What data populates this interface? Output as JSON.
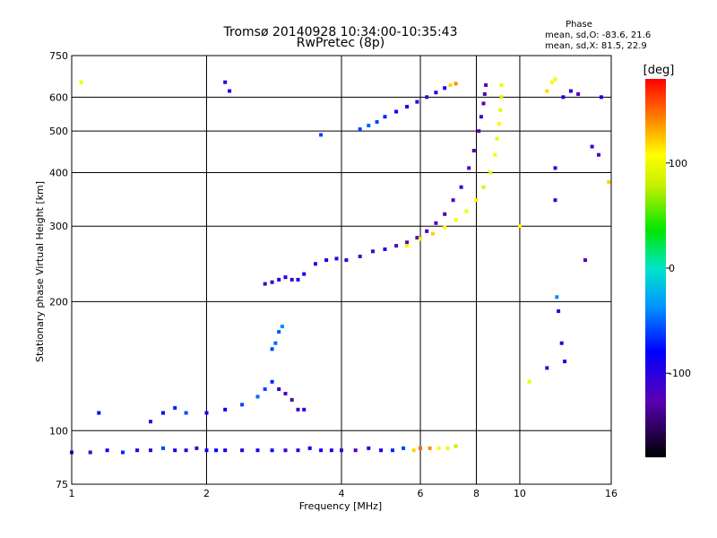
{
  "chart_data": {
    "type": "scatter",
    "title": "Tromsø 20140928 10:34:00-10:35:43",
    "subtitle": "RwPretec (8p)",
    "phase_stats": {
      "heading": "Phase",
      "line1": "mean, sd,O: -83.6, 21.6",
      "line2": "mean, sd,X:  81.5, 22.9"
    },
    "xlabel": "Frequency [MHz]",
    "ylabel": "Stationary phase Virtual Height [km]",
    "x_scale": "log",
    "y_scale": "log",
    "xlim": [
      1,
      16
    ],
    "ylim": [
      75,
      750
    ],
    "x_ticks": [
      1,
      2,
      4,
      6,
      8,
      10,
      16
    ],
    "x_tick_labels": [
      "1",
      "2",
      "4",
      "6",
      "8",
      "10",
      "16"
    ],
    "y_ticks": [
      75,
      100,
      200,
      300,
      400,
      500,
      600,
      750
    ],
    "y_tick_labels": [
      "75",
      "100",
      "200",
      "300",
      "400",
      "500",
      "600",
      "750"
    ],
    "grid": true,
    "colorbar": {
      "label": "[deg]",
      "range": [
        -180,
        180
      ],
      "ticks": [
        100,
        0,
        -100
      ],
      "tick_labels": [
        "100",
        "0",
        "-100"
      ]
    },
    "series": [
      {
        "x": [
          1.0,
          1.1,
          1.2,
          1.3,
          1.4,
          1.5,
          1.6,
          1.7,
          1.8,
          1.9,
          2.0,
          2.1,
          2.2,
          2.4,
          2.6,
          2.8,
          3.0,
          3.2,
          3.4,
          3.6,
          3.8,
          4.0,
          4.3,
          4.6,
          4.9,
          5.2,
          5.5,
          5.8,
          6.0,
          6.3,
          6.6,
          6.9,
          7.2
        ],
        "y": [
          89,
          89,
          90,
          89,
          90,
          90,
          91,
          90,
          90,
          91,
          90,
          90,
          90,
          90,
          90,
          90,
          90,
          90,
          91,
          90,
          90,
          90,
          90,
          91,
          90,
          90,
          91,
          90,
          91,
          91,
          91,
          91,
          92
        ],
        "phase": [
          -100,
          -110,
          -90,
          -70,
          -100,
          -110,
          -60,
          -90,
          -100,
          -110,
          -90,
          -80,
          -90,
          -100,
          -90,
          -90,
          -110,
          -100,
          -80,
          -90,
          -100,
          -110,
          -120,
          -100,
          -90,
          -70,
          -60,
          120,
          150,
          140,
          110,
          100,
          80
        ]
      },
      {
        "x": [
          1.5,
          1.6,
          1.7,
          1.8,
          2.0,
          2.2,
          2.4,
          2.6,
          2.7,
          2.8,
          2.9,
          3.0,
          3.1,
          3.2,
          3.3
        ],
        "y": [
          105,
          110,
          113,
          110,
          110,
          112,
          115,
          120,
          125,
          130,
          125,
          122,
          118,
          112,
          112
        ],
        "phase": [
          -110,
          -80,
          -70,
          -60,
          -90,
          -80,
          -60,
          -50,
          -60,
          -70,
          -100,
          -120,
          -130,
          -110,
          -100
        ]
      },
      {
        "x": [
          2.8,
          2.85,
          2.9,
          2.95
        ],
        "y": [
          155,
          160,
          170,
          175
        ],
        "phase": [
          -60,
          -50,
          -55,
          -40
        ]
      },
      {
        "x": [
          2.7,
          2.8,
          2.9,
          3.0,
          3.1,
          3.2,
          3.3,
          3.5,
          3.7,
          3.9,
          4.1,
          4.4,
          4.7,
          5.0,
          5.3,
          5.6,
          5.9,
          6.2,
          6.5,
          6.8,
          7.1,
          7.4,
          7.7,
          7.9,
          8.1,
          8.2,
          8.3,
          8.35,
          8.4
        ],
        "y": [
          220,
          222,
          225,
          228,
          225,
          225,
          232,
          245,
          250,
          252,
          250,
          255,
          262,
          265,
          270,
          275,
          282,
          292,
          305,
          320,
          345,
          370,
          410,
          450,
          500,
          540,
          580,
          610,
          640
        ],
        "phase": [
          -110,
          -100,
          -90,
          -100,
          -110,
          -100,
          -90,
          -100,
          -90,
          -100,
          -110,
          -120,
          -110,
          -100,
          -120,
          -130,
          -120,
          -110,
          -120,
          -130,
          -120,
          -110,
          -120,
          -130,
          -120,
          -110,
          -120,
          -130,
          -120
        ]
      },
      {
        "x": [
          5.6,
          6.0,
          6.4,
          6.8,
          7.2,
          7.6,
          8.0,
          8.3,
          8.6,
          8.8,
          8.9,
          9.0,
          9.05,
          9.1,
          9.1
        ],
        "y": [
          270,
          280,
          288,
          298,
          310,
          325,
          345,
          370,
          400,
          440,
          480,
          520,
          560,
          600,
          640
        ],
        "phase": [
          100,
          110,
          120,
          110,
          105,
          100,
          110,
          90,
          95,
          105,
          100,
          110,
          95,
          90,
          100
        ]
      },
      {
        "x": [
          4.4,
          4.6,
          4.8,
          5.0,
          5.3,
          5.6,
          5.9,
          6.2,
          6.5,
          6.8,
          7.0,
          7.2
        ],
        "y": [
          505,
          515,
          525,
          540,
          555,
          570,
          585,
          600,
          615,
          630,
          640,
          645
        ],
        "phase": [
          -60,
          -50,
          -60,
          -70,
          -80,
          -90,
          -100,
          -110,
          -100,
          -90,
          120,
          140
        ]
      },
      {
        "x": [
          1.05,
          1.15,
          2.2,
          2.25,
          3.6,
          10.0,
          10.5,
          11.5,
          11.8,
          12.0,
          12.5,
          13.0,
          13.5,
          14.5,
          15.0,
          15.2,
          15.8
        ],
        "y": [
          650,
          110,
          650,
          620,
          490,
          300,
          130,
          620,
          650,
          660,
          600,
          620,
          610,
          460,
          440,
          600,
          380
        ],
        "phase": [
          100,
          -80,
          -100,
          -90,
          -60,
          110,
          100,
          120,
          110,
          100,
          -90,
          -100,
          -120,
          -110,
          -120,
          -90,
          120
        ]
      },
      {
        "x": [
          12.0,
          12.0,
          12.1,
          12.2,
          12.4,
          12.6,
          14.0,
          11.5
        ],
        "y": [
          410,
          345,
          205,
          190,
          160,
          145,
          250,
          140
        ],
        "phase": [
          -100,
          -110,
          -40,
          -110,
          -100,
          -90,
          -120,
          -110
        ]
      }
    ]
  }
}
